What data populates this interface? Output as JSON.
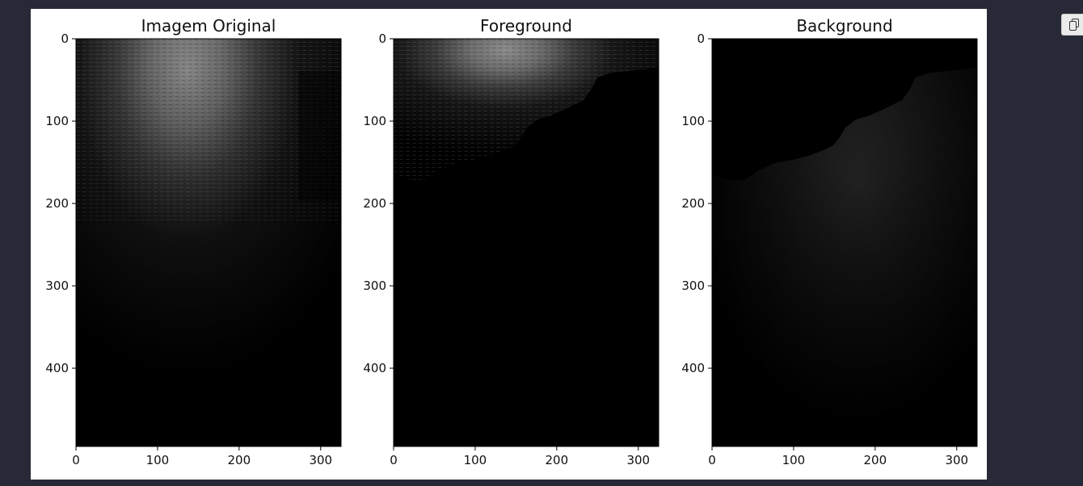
{
  "figure": {
    "panels": [
      {
        "title": "Imagem Original"
      },
      {
        "title": "Foreground"
      },
      {
        "title": "Background"
      }
    ]
  },
  "chart_data": [
    {
      "type": "image",
      "title": "Imagem Original",
      "colormap": "gray",
      "xlim": [
        0,
        325
      ],
      "ylim": [
        495,
        0
      ],
      "xticks": [
        0,
        100,
        200,
        300
      ],
      "yticks": [
        0,
        100,
        200,
        300,
        400
      ]
    },
    {
      "type": "image",
      "title": "Foreground",
      "colormap": "gray",
      "xlim": [
        0,
        325
      ],
      "ylim": [
        495,
        0
      ],
      "xticks": [
        0,
        100,
        200,
        300
      ],
      "yticks": [
        0,
        100,
        200,
        300,
        400
      ]
    },
    {
      "type": "image",
      "title": "Background",
      "colormap": "gray",
      "xlim": [
        0,
        325
      ],
      "ylim": [
        495,
        0
      ],
      "xticks": [
        0,
        100,
        200,
        300
      ],
      "yticks": [
        0,
        100,
        200,
        300,
        400
      ]
    }
  ],
  "toolbar": {
    "copy_icon": "copy-icon"
  }
}
